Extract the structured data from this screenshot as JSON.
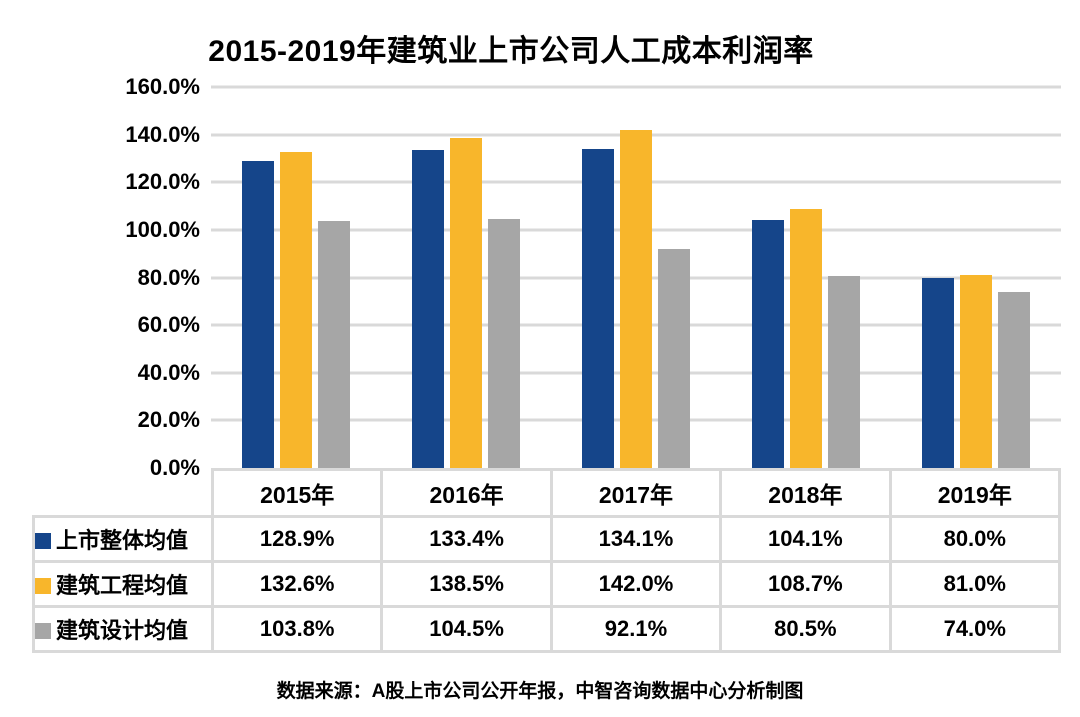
{
  "title": "2015-2019年建筑业上市公司人工成本利润率",
  "source_note": "数据来源：A股上市公司公开年报，中智咨询数据中心分析制图",
  "colors": {
    "background": "#FFFFFF",
    "grid": "#D9D9D9",
    "text": "#000000"
  },
  "chart_data": {
    "type": "bar",
    "title": "2015-2019年建筑业上市公司人工成本利润率",
    "categories": [
      "2015年",
      "2016年",
      "2017年",
      "2018年",
      "2019年"
    ],
    "series": [
      {
        "name": "上市整体均值",
        "color": "#15458A",
        "values": [
          128.9,
          133.4,
          134.1,
          104.1,
          80.0
        ]
      },
      {
        "name": "建筑工程均值",
        "color": "#F8B62B",
        "values": [
          132.6,
          138.5,
          142.0,
          108.7,
          81.0
        ]
      },
      {
        "name": "建筑设计均值",
        "color": "#A6A6A6",
        "values": [
          103.8,
          104.5,
          92.1,
          80.5,
          74.0
        ]
      }
    ],
    "value_suffix": "%",
    "value_decimals": 1,
    "ylim": [
      0,
      160
    ],
    "ytick_step": 20,
    "ytick_labels_desc": [
      "160.0%",
      "140.0%",
      "120.0%",
      "100.0%",
      "80.0%",
      "60.0%",
      "40.0%",
      "20.0%",
      "0.0%"
    ],
    "grid": true,
    "legend_position": "data-table-left-column",
    "data_table": true
  }
}
